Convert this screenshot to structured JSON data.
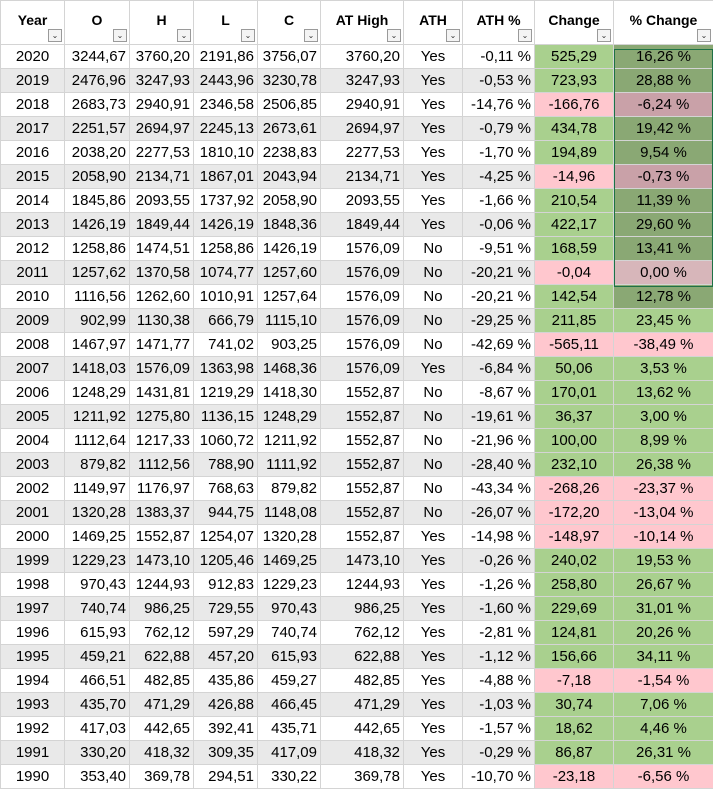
{
  "headers": [
    "Year",
    "O",
    "H",
    "L",
    "C",
    "AT High",
    "ATH",
    "ATH %",
    "Change",
    "% Change"
  ],
  "dropdown_glyph": "⌄",
  "rows": [
    [
      "2020",
      "3244,67",
      "3760,20",
      "2191,86",
      "3756,07",
      "3760,20",
      "Yes",
      "-0,11 %",
      "525,29",
      "16,26 %"
    ],
    [
      "2019",
      "2476,96",
      "3247,93",
      "2443,96",
      "3230,78",
      "3247,93",
      "Yes",
      "-0,53 %",
      "723,93",
      "28,88 %"
    ],
    [
      "2018",
      "2683,73",
      "2940,91",
      "2346,58",
      "2506,85",
      "2940,91",
      "Yes",
      "-14,76 %",
      "-166,76",
      "-6,24 %"
    ],
    [
      "2017",
      "2251,57",
      "2694,97",
      "2245,13",
      "2673,61",
      "2694,97",
      "Yes",
      "-0,79 %",
      "434,78",
      "19,42 %"
    ],
    [
      "2016",
      "2038,20",
      "2277,53",
      "1810,10",
      "2238,83",
      "2277,53",
      "Yes",
      "-1,70 %",
      "194,89",
      "9,54 %"
    ],
    [
      "2015",
      "2058,90",
      "2134,71",
      "1867,01",
      "2043,94",
      "2134,71",
      "Yes",
      "-4,25 %",
      "-14,96",
      "-0,73 %"
    ],
    [
      "2014",
      "1845,86",
      "2093,55",
      "1737,92",
      "2058,90",
      "2093,55",
      "Yes",
      "-1,66 %",
      "210,54",
      "11,39 %"
    ],
    [
      "2013",
      "1426,19",
      "1849,44",
      "1426,19",
      "1848,36",
      "1849,44",
      "Yes",
      "-0,06 %",
      "422,17",
      "29,60 %"
    ],
    [
      "2012",
      "1258,86",
      "1474,51",
      "1258,86",
      "1426,19",
      "1576,09",
      "No",
      "-9,51 %",
      "168,59",
      "13,41 %"
    ],
    [
      "2011",
      "1257,62",
      "1370,58",
      "1074,77",
      "1257,60",
      "1576,09",
      "No",
      "-20,21 %",
      "-0,04",
      "0,00 %"
    ],
    [
      "2010",
      "1116,56",
      "1262,60",
      "1010,91",
      "1257,64",
      "1576,09",
      "No",
      "-20,21 %",
      "142,54",
      "12,78 %"
    ],
    [
      "2009",
      "902,99",
      "1130,38",
      "666,79",
      "1115,10",
      "1576,09",
      "No",
      "-29,25 %",
      "211,85",
      "23,45 %"
    ],
    [
      "2008",
      "1467,97",
      "1471,77",
      "741,02",
      "903,25",
      "1576,09",
      "No",
      "-42,69 %",
      "-565,11",
      "-38,49 %"
    ],
    [
      "2007",
      "1418,03",
      "1576,09",
      "1363,98",
      "1468,36",
      "1576,09",
      "Yes",
      "-6,84 %",
      "50,06",
      "3,53 %"
    ],
    [
      "2006",
      "1248,29",
      "1431,81",
      "1219,29",
      "1418,30",
      "1552,87",
      "No",
      "-8,67 %",
      "170,01",
      "13,62 %"
    ],
    [
      "2005",
      "1211,92",
      "1275,80",
      "1136,15",
      "1248,29",
      "1552,87",
      "No",
      "-19,61 %",
      "36,37",
      "3,00 %"
    ],
    [
      "2004",
      "1112,64",
      "1217,33",
      "1060,72",
      "1211,92",
      "1552,87",
      "No",
      "-21,96 %",
      "100,00",
      "8,99 %"
    ],
    [
      "2003",
      "879,82",
      "1112,56",
      "788,90",
      "1111,92",
      "1552,87",
      "No",
      "-28,40 %",
      "232,10",
      "26,38 %"
    ],
    [
      "2002",
      "1149,97",
      "1176,97",
      "768,63",
      "879,82",
      "1552,87",
      "No",
      "-43,34 %",
      "-268,26",
      "-23,37 %"
    ],
    [
      "2001",
      "1320,28",
      "1383,37",
      "944,75",
      "1148,08",
      "1552,87",
      "No",
      "-26,07 %",
      "-172,20",
      "-13,04 %"
    ],
    [
      "2000",
      "1469,25",
      "1552,87",
      "1254,07",
      "1320,28",
      "1552,87",
      "Yes",
      "-14,98 %",
      "-148,97",
      "-10,14 %"
    ],
    [
      "1999",
      "1229,23",
      "1473,10",
      "1205,46",
      "1469,25",
      "1473,10",
      "Yes",
      "-0,26 %",
      "240,02",
      "19,53 %"
    ],
    [
      "1998",
      "970,43",
      "1244,93",
      "912,83",
      "1229,23",
      "1244,93",
      "Yes",
      "-1,26 %",
      "258,80",
      "26,67 %"
    ],
    [
      "1997",
      "740,74",
      "986,25",
      "729,55",
      "970,43",
      "986,25",
      "Yes",
      "-1,60 %",
      "229,69",
      "31,01 %"
    ],
    [
      "1996",
      "615,93",
      "762,12",
      "597,29",
      "740,74",
      "762,12",
      "Yes",
      "-2,81 %",
      "124,81",
      "20,26 %"
    ],
    [
      "1995",
      "459,21",
      "622,88",
      "457,20",
      "615,93",
      "622,88",
      "Yes",
      "-1,12 %",
      "156,66",
      "34,11 %"
    ],
    [
      "1994",
      "466,51",
      "482,85",
      "435,86",
      "459,27",
      "482,85",
      "Yes",
      "-4,88 %",
      "-7,18",
      "-1,54 %"
    ],
    [
      "1993",
      "435,70",
      "471,29",
      "426,88",
      "466,45",
      "471,29",
      "Yes",
      "-1,03 %",
      "30,74",
      "7,06 %"
    ],
    [
      "1992",
      "417,03",
      "442,65",
      "392,41",
      "435,71",
      "442,65",
      "Yes",
      "-1,57 %",
      "18,62",
      "4,46 %"
    ],
    [
      "1991",
      "330,20",
      "418,32",
      "309,35",
      "417,09",
      "418,32",
      "Yes",
      "-0,29 %",
      "86,87",
      "26,31 %"
    ],
    [
      "1990",
      "353,40",
      "369,78",
      "294,51",
      "330,22",
      "369,78",
      "Yes",
      "-10,70 %",
      "-23,18",
      "-6,56 %"
    ]
  ],
  "colors": {
    "positive": "#a9d08e",
    "negative": "#ffc7ce",
    "selected_positive": "#8aa874",
    "selected_negative": "#c9a1a8",
    "selection_border": "#1e7145"
  }
}
